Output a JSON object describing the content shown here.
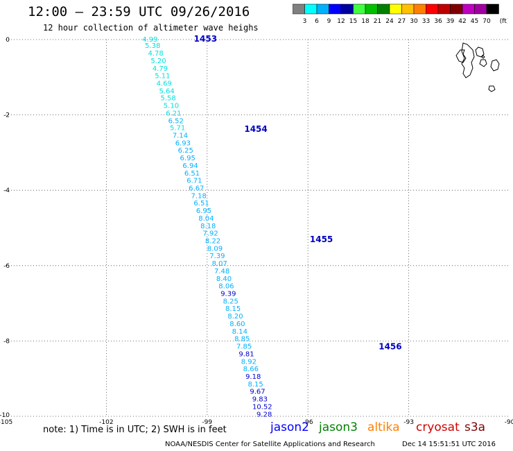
{
  "header": {
    "title": "12:00 — 23:59 UTC 09/26/2016",
    "subtitle": "12 hour collection of altimeter wave heighs"
  },
  "legend": {
    "unit": "(ft)",
    "colors": [
      "#808080",
      "#00ffff",
      "#00b0ff",
      "#0000ff",
      "#0000a0",
      "#40ff40",
      "#00c000",
      "#008000",
      "#ffff00",
      "#ffc000",
      "#ff8000",
      "#ff0000",
      "#c00000",
      "#800000",
      "#c000c0",
      "#a000a0",
      "#000000"
    ],
    "labels": [
      "3",
      "6",
      "9",
      "12",
      "15",
      "18",
      "21",
      "24",
      "27",
      "30",
      "33",
      "36",
      "39",
      "42",
      "45",
      "70"
    ]
  },
  "map": {
    "lon_range": [
      -105,
      -90
    ],
    "lat_range": [
      -10,
      0
    ],
    "x_ticks": [
      {
        "value": -105,
        "label": "-105"
      },
      {
        "value": -102,
        "label": "-102"
      },
      {
        "value": -99,
        "label": "-99"
      },
      {
        "value": -96,
        "label": "-96"
      },
      {
        "value": -93,
        "label": "-93"
      },
      {
        "value": -90,
        "label": "-90"
      }
    ],
    "y_ticks": [
      {
        "value": 0,
        "label": "0"
      },
      {
        "value": -2,
        "label": "-2"
      },
      {
        "value": -4,
        "label": "-4"
      },
      {
        "value": -6,
        "label": "-6"
      },
      {
        "value": -8,
        "label": "-8"
      },
      {
        "value": -10,
        "label": "-10"
      }
    ],
    "grid": "dotted"
  },
  "track": {
    "satellite": "jason2",
    "time_labels": [
      {
        "label": "1453",
        "lon": -99.05,
        "lat": 0.02
      },
      {
        "label": "1454",
        "lon": -97.55,
        "lat": -2.38
      },
      {
        "label": "1455",
        "lon": -95.6,
        "lat": -5.3
      },
      {
        "label": "1456",
        "lon": -93.55,
        "lat": -8.15
      }
    ],
    "points": [
      {
        "v": "4.99",
        "lon": -100.7,
        "lat": 0.0,
        "c": "#00e0e0"
      },
      {
        "v": "5.38",
        "lon": -100.62,
        "lat": -0.17,
        "c": "#00e0e0"
      },
      {
        "v": "4.78",
        "lon": -100.53,
        "lat": -0.37,
        "c": "#00e0e0"
      },
      {
        "v": "5.20",
        "lon": -100.45,
        "lat": -0.57,
        "c": "#00e0e0"
      },
      {
        "v": "4.79",
        "lon": -100.4,
        "lat": -0.77,
        "c": "#00e0e0"
      },
      {
        "v": "5.11",
        "lon": -100.33,
        "lat": -0.97,
        "c": "#00e0e0"
      },
      {
        "v": "4.69",
        "lon": -100.28,
        "lat": -1.17,
        "c": "#00e0e0"
      },
      {
        "v": "5.64",
        "lon": -100.2,
        "lat": -1.37,
        "c": "#00e0e0"
      },
      {
        "v": "5.58",
        "lon": -100.16,
        "lat": -1.56,
        "c": "#00e0e0"
      },
      {
        "v": "5.10",
        "lon": -100.07,
        "lat": -1.76,
        "c": "#00e0e0"
      },
      {
        "v": "6.21",
        "lon": -100.0,
        "lat": -1.96,
        "c": "#00e0e0"
      },
      {
        "v": "6.52",
        "lon": -99.93,
        "lat": -2.16,
        "c": "#00b0ff"
      },
      {
        "v": "5.71",
        "lon": -99.88,
        "lat": -2.35,
        "c": "#00e0e0"
      },
      {
        "v": "7.14",
        "lon": -99.8,
        "lat": -2.55,
        "c": "#00b0ff"
      },
      {
        "v": "6.93",
        "lon": -99.72,
        "lat": -2.75,
        "c": "#00b0ff"
      },
      {
        "v": "6.25",
        "lon": -99.64,
        "lat": -2.95,
        "c": "#00b0ff"
      },
      {
        "v": "6.95",
        "lon": -99.58,
        "lat": -3.15,
        "c": "#00b0ff"
      },
      {
        "v": "6.94",
        "lon": -99.5,
        "lat": -3.35,
        "c": "#00b0ff"
      },
      {
        "v": "6.51",
        "lon": -99.45,
        "lat": -3.55,
        "c": "#00b0ff"
      },
      {
        "v": "6.71",
        "lon": -99.38,
        "lat": -3.75,
        "c": "#00b0ff"
      },
      {
        "v": "6.67",
        "lon": -99.32,
        "lat": -3.95,
        "c": "#00b0ff"
      },
      {
        "v": "7.18",
        "lon": -99.25,
        "lat": -4.15,
        "c": "#00b0ff"
      },
      {
        "v": "6.51",
        "lon": -99.17,
        "lat": -4.35,
        "c": "#00b0ff"
      },
      {
        "v": "6.95",
        "lon": -99.1,
        "lat": -4.55,
        "c": "#00b0ff"
      },
      {
        "v": "8.04",
        "lon": -99.03,
        "lat": -4.75,
        "c": "#00b0ff"
      },
      {
        "v": "8.18",
        "lon": -98.97,
        "lat": -4.95,
        "c": "#00b0ff"
      },
      {
        "v": "7.92",
        "lon": -98.9,
        "lat": -5.15,
        "c": "#00b0ff"
      },
      {
        "v": "8.22",
        "lon": -98.83,
        "lat": -5.35,
        "c": "#00b0ff"
      },
      {
        "v": "8.09",
        "lon": -98.77,
        "lat": -5.55,
        "c": "#00b0ff"
      },
      {
        "v": "7.39",
        "lon": -98.7,
        "lat": -5.75,
        "c": "#00b0ff"
      },
      {
        "v": "8.07",
        "lon": -98.63,
        "lat": -5.95,
        "c": "#00b0ff"
      },
      {
        "v": "7.48",
        "lon": -98.56,
        "lat": -6.15,
        "c": "#00b0ff"
      },
      {
        "v": "8.40",
        "lon": -98.5,
        "lat": -6.35,
        "c": "#00b0ff"
      },
      {
        "v": "8.06",
        "lon": -98.43,
        "lat": -6.55,
        "c": "#00b0ff"
      },
      {
        "v": "9.39",
        "lon": -98.37,
        "lat": -6.75,
        "c": "#0000d0"
      },
      {
        "v": "8.25",
        "lon": -98.3,
        "lat": -6.95,
        "c": "#00b0ff"
      },
      {
        "v": "8.15",
        "lon": -98.23,
        "lat": -7.15,
        "c": "#00b0ff"
      },
      {
        "v": "8.20",
        "lon": -98.16,
        "lat": -7.35,
        "c": "#00b0ff"
      },
      {
        "v": "8.60",
        "lon": -98.1,
        "lat": -7.55,
        "c": "#00b0ff"
      },
      {
        "v": "8.14",
        "lon": -98.03,
        "lat": -7.75,
        "c": "#00b0ff"
      },
      {
        "v": "8.85",
        "lon": -97.96,
        "lat": -7.95,
        "c": "#00b0ff"
      },
      {
        "v": "7.85",
        "lon": -97.9,
        "lat": -8.15,
        "c": "#00b0ff"
      },
      {
        "v": "9.81",
        "lon": -97.83,
        "lat": -8.35,
        "c": "#0000d0"
      },
      {
        "v": "8.92",
        "lon": -97.76,
        "lat": -8.55,
        "c": "#00b0ff"
      },
      {
        "v": "8.66",
        "lon": -97.7,
        "lat": -8.75,
        "c": "#00b0ff"
      },
      {
        "v": "9.18",
        "lon": -97.63,
        "lat": -8.95,
        "c": "#0000d0"
      },
      {
        "v": "8.15",
        "lon": -97.56,
        "lat": -9.15,
        "c": "#00b0ff"
      },
      {
        "v": "9.67",
        "lon": -97.5,
        "lat": -9.35,
        "c": "#0000d0"
      },
      {
        "v": "9.83",
        "lon": -97.43,
        "lat": -9.55,
        "c": "#0000d0"
      },
      {
        "v": "10.52",
        "lon": -97.36,
        "lat": -9.75,
        "c": "#0000d0"
      },
      {
        "v": "9.28",
        "lon": -97.3,
        "lat": -9.95,
        "c": "#0000d0"
      }
    ]
  },
  "footer": {
    "note": "note: 1) Time is in UTC; 2) SWH is in feet",
    "satellites": [
      {
        "name": "jason2",
        "color": "#0000ff"
      },
      {
        "name": "jason3",
        "color": "#008000"
      },
      {
        "name": "altika",
        "color": "#ff8000"
      },
      {
        "name": "cryosat",
        "color": "#d00000"
      },
      {
        "name": "s3a",
        "color": "#800000"
      }
    ],
    "credit": "NOAA/NESDIS Center for Satellite Applications and Research",
    "timestamp": "Dec 14 15:51:51 UTC 2016"
  }
}
